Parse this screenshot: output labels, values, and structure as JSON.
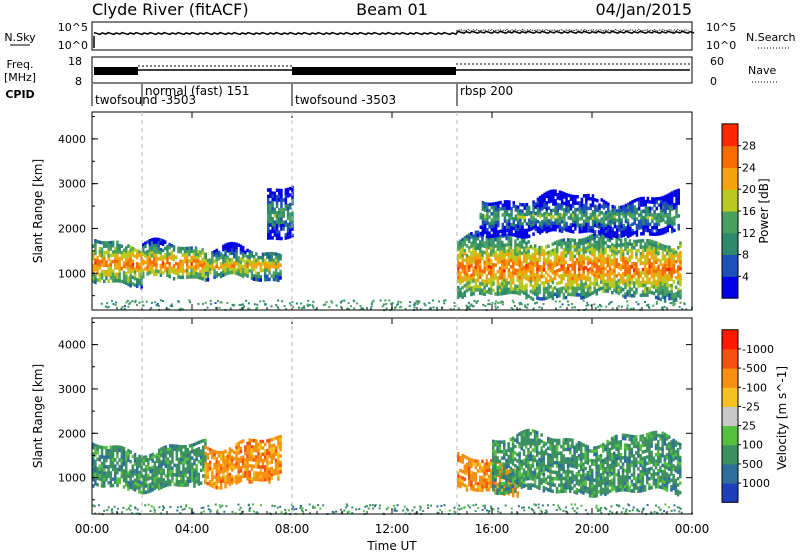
{
  "header": {
    "station": "Clyde River (fitACF)",
    "beam": "Beam 01",
    "date": "04/Jan/2015"
  },
  "noise_panel": {
    "left_label": "N.Sky",
    "left_ticks": [
      "10^5",
      "10^0"
    ],
    "right_ticks": [
      "10^5",
      "10^0"
    ],
    "right_label": "N.Search",
    "sky_level": 0.12,
    "search_level": 0.14
  },
  "freq_panel": {
    "left_label_top": "Freq.",
    "left_label_bottom": "[MHz]",
    "left_ticks": [
      "18",
      "8"
    ],
    "right_ticks": [
      "60",
      "0"
    ],
    "right_label": "Nave",
    "cpid_label": "CPID"
  },
  "cpid_segments": [
    {
      "start_h": 0.0,
      "end_h": 2.0,
      "label": "twofsound -3503"
    },
    {
      "start_h": 2.0,
      "end_h": 8.0,
      "label": "normal (fast) 151"
    },
    {
      "start_h": 8.0,
      "end_h": 14.6,
      "label": "twofsound -3503"
    },
    {
      "start_h": 14.6,
      "end_h": 24.0,
      "label": "rbsp 200"
    }
  ],
  "chart_data": [
    {
      "type": "heatmap",
      "title": "",
      "xlabel": "Time UT",
      "ylabel": "Slant Range [km]",
      "xlim": [
        0,
        24
      ],
      "ylim": [
        180,
        4600
      ],
      "x_ticks": [
        "00:00",
        "04:00",
        "08:00",
        "12:00",
        "16:00",
        "20:00",
        "00:00"
      ],
      "y_ticks": [
        1000,
        2000,
        3000,
        4000
      ],
      "colorbar": {
        "label": "Power [dB]",
        "ticks": [
          4,
          8,
          12,
          16,
          20,
          24,
          28
        ],
        "colors": [
          "#0000e6",
          "#1f4fb8",
          "#2e8a6a",
          "#4aa060",
          "#b9c91d",
          "#f5a30d",
          "#f56b00",
          "#ff2a00"
        ]
      },
      "regions": [
        {
          "start_h": 0.0,
          "end_h": 2.0,
          "range_low": 800,
          "range_high": 1700,
          "power_db": 24
        },
        {
          "start_h": 2.0,
          "end_h": 4.5,
          "range_low": 900,
          "range_high": 1600,
          "power_db": 26
        },
        {
          "start_h": 4.5,
          "end_h": 7.5,
          "range_low": 900,
          "range_high": 1500,
          "power_db": 22
        },
        {
          "start_h": 7.0,
          "end_h": 8.0,
          "range_low": 1800,
          "range_high": 2900,
          "power_db": 12
        },
        {
          "start_h": 14.6,
          "end_h": 23.5,
          "range_low": 500,
          "range_high": 1800,
          "power_db": 24
        },
        {
          "start_h": 15.5,
          "end_h": 23.5,
          "range_low": 1900,
          "range_high": 2700,
          "power_db": 14
        }
      ]
    },
    {
      "type": "heatmap",
      "title": "",
      "xlabel": "Time UT",
      "ylabel": "Slant Range [km]",
      "xlim": [
        0,
        24
      ],
      "ylim": [
        180,
        4600
      ],
      "x_ticks": [
        "00:00",
        "04:00",
        "08:00",
        "12:00",
        "16:00",
        "20:00",
        "00:00"
      ],
      "y_ticks": [
        1000,
        2000,
        3000,
        4000
      ],
      "colorbar": {
        "label": "Velocity [m s^-1]",
        "ticks": [
          "1000",
          "500",
          "100",
          "25",
          "-25",
          "-100",
          "-500",
          "-1000"
        ],
        "colors": [
          "#1f3fb8",
          "#2e6e9a",
          "#3d9060",
          "#55c040",
          "#c8c8c8",
          "#f5c020",
          "#f59010",
          "#f55010",
          "#ff1a00"
        ]
      },
      "regions": [
        {
          "start_h": 0.0,
          "end_h": 4.5,
          "range_low": 800,
          "range_high": 1700,
          "velocity": 60
        },
        {
          "start_h": 4.5,
          "end_h": 7.5,
          "range_low": 900,
          "range_high": 1800,
          "velocity": -150
        },
        {
          "start_h": 14.6,
          "end_h": 17.0,
          "range_low": 700,
          "range_high": 1400,
          "velocity": -150
        },
        {
          "start_h": 16.0,
          "end_h": 23.5,
          "range_low": 700,
          "range_high": 1900,
          "velocity": 60
        }
      ]
    }
  ]
}
